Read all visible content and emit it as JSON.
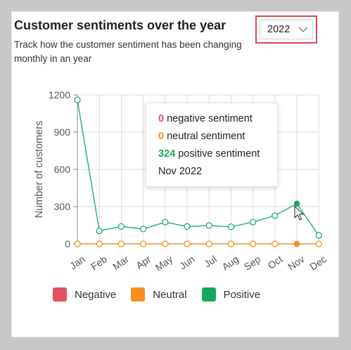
{
  "header": {
    "title": "Customer sentiments over the year",
    "subtitle": "Track how the customer sentiment has been changing monthly in an year"
  },
  "year_select": {
    "value": "2022"
  },
  "tooltip": {
    "negative_value": "0",
    "negative_label": "negative sentiment",
    "neutral_value": "0",
    "neutral_label": "neutral sentiment",
    "positive_value": "324",
    "positive_label": "positive sentiment",
    "period": "Nov 2022"
  },
  "colors": {
    "negative": "#e55160",
    "neutral": "#f5901a",
    "positive": "#14a95f",
    "highlight_border": "#e0474c"
  },
  "chart_data": {
    "type": "line",
    "categories": [
      "Jan",
      "Feb",
      "Mar",
      "Apr",
      "May",
      "Jun",
      "Jul",
      "Aug",
      "Sep",
      "Oct",
      "Nov",
      "Dec"
    ],
    "ylabel": "Number of customers",
    "ylim": [
      0,
      1200
    ],
    "yticks": [
      "1200",
      "900",
      "600",
      "300",
      "0"
    ],
    "grid": true,
    "legend_position": "bottom",
    "highlighted_category": "Nov",
    "series": [
      {
        "name": "Negative",
        "values": [
          0,
          0,
          0,
          0,
          0,
          0,
          0,
          0,
          0,
          0,
          0,
          0
        ]
      },
      {
        "name": "Neutral",
        "values": [
          0,
          0,
          0,
          0,
          0,
          0,
          0,
          0,
          0,
          0,
          0,
          0
        ]
      },
      {
        "name": "Positive",
        "values": [
          1160,
          105,
          140,
          120,
          175,
          140,
          148,
          138,
          175,
          228,
          324,
          68
        ]
      }
    ]
  }
}
